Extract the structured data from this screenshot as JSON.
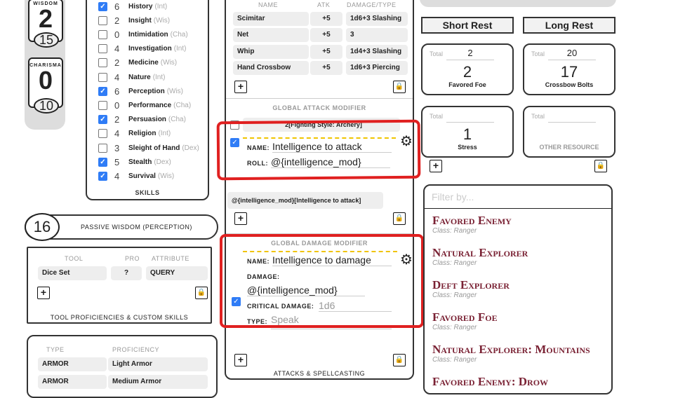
{
  "abilities": [
    {
      "label": "WISDOM",
      "mod": "2",
      "score": "15"
    },
    {
      "label": "CHARISMA",
      "mod": "0",
      "score": "10"
    }
  ],
  "skills": {
    "title": "SKILLS",
    "items": [
      {
        "checked": true,
        "value": "6",
        "name": "History",
        "attr": "(Int)"
      },
      {
        "checked": false,
        "value": "2",
        "name": "Insight",
        "attr": "(Wis)"
      },
      {
        "checked": false,
        "value": "0",
        "name": "Intimidation",
        "attr": "(Cha)"
      },
      {
        "checked": false,
        "value": "4",
        "name": "Investigation",
        "attr": "(Int)"
      },
      {
        "checked": false,
        "value": "2",
        "name": "Medicine",
        "attr": "(Wis)"
      },
      {
        "checked": false,
        "value": "4",
        "name": "Nature",
        "attr": "(Int)"
      },
      {
        "checked": true,
        "value": "6",
        "name": "Perception",
        "attr": "(Wis)"
      },
      {
        "checked": false,
        "value": "0",
        "name": "Performance",
        "attr": "(Cha)"
      },
      {
        "checked": true,
        "value": "2",
        "name": "Persuasion",
        "attr": "(Cha)"
      },
      {
        "checked": false,
        "value": "4",
        "name": "Religion",
        "attr": "(Int)"
      },
      {
        "checked": false,
        "value": "3",
        "name": "Sleight of Hand",
        "attr": "(Dex)"
      },
      {
        "checked": true,
        "value": "5",
        "name": "Stealth",
        "attr": "(Dex)"
      },
      {
        "checked": true,
        "value": "4",
        "name": "Survival",
        "attr": "(Wis)"
      }
    ]
  },
  "passive": {
    "value": "16",
    "label": "PASSIVE WISDOM (PERCEPTION)"
  },
  "tools": {
    "headers": [
      "TOOL",
      "PRO",
      "ATTRIBUTE"
    ],
    "rows": [
      [
        "Dice Set",
        "?",
        "QUERY"
      ]
    ],
    "title": "TOOL PROFICIENCIES & CUSTOM SKILLS"
  },
  "proficiencies": {
    "headers": [
      "TYPE",
      "PROFICIENCY"
    ],
    "rows": [
      [
        "ARMOR",
        "Light Armor"
      ],
      [
        "ARMOR",
        "Medium Armor"
      ]
    ]
  },
  "attacks": {
    "headers": [
      "NAME",
      "ATK",
      "DAMAGE/TYPE"
    ],
    "rows": [
      [
        "Scimitar",
        "+5",
        "1d6+3 Slashing"
      ],
      [
        "Net",
        "+5",
        "3"
      ],
      [
        "Whip",
        "+5",
        "1d4+3 Slashing"
      ],
      [
        "Hand Crossbow",
        "+5",
        "1d6+3 Piercing"
      ]
    ],
    "global_attack": {
      "title": "GLOBAL ATTACK MODIFIER",
      "existing": "2[Fighting Style: Archery]",
      "name_label": "NAME:",
      "name": "Intelligence to attack",
      "roll_label": "ROLL:",
      "roll": "@{intelligence_mod}",
      "summary": "@{intelligence_mod}[Intelligence to attack]"
    },
    "global_damage": {
      "title": "GLOBAL DAMAGE MODIFIER",
      "name_label": "NAME:",
      "name": "Intelligence to damage",
      "damage_label": "DAMAGE:",
      "damage": "@{intelligence_mod}",
      "crit_label": "CRITICAL DAMAGE:",
      "crit_placeholder": "1d6",
      "type_label": "TYPE:",
      "type_placeholder": "Speak"
    },
    "title": "ATTACKS & SPELLCASTING"
  },
  "rest": {
    "short": "Short Rest",
    "long": "Long Rest"
  },
  "resources": [
    {
      "total_label": "Total",
      "max": "2",
      "current": "2",
      "name": "Favored Foe"
    },
    {
      "total_label": "Total",
      "max": "20",
      "current": "17",
      "name": "Crossbow Bolts"
    },
    {
      "total_label": "Total",
      "max": "",
      "current": "1",
      "name": "Stress"
    },
    {
      "total_label": "Total",
      "max": "",
      "current": "",
      "name": "OTHER RESOURCE"
    }
  ],
  "features": {
    "filter_placeholder": "Filter by...",
    "items": [
      {
        "name": "Favored Enemy",
        "source": "Class: Ranger"
      },
      {
        "name": "Natural Explorer",
        "source": "Class: Ranger"
      },
      {
        "name": "Deft Explorer",
        "source": "Class: Ranger"
      },
      {
        "name": "Favored Foe",
        "source": "Class: Ranger"
      },
      {
        "name": "Natural Explorer: Mountains",
        "source": "Class: Ranger"
      },
      {
        "name": "Favored Enemy: Drow",
        "source": ""
      }
    ]
  },
  "colors": {
    "accent": "#7a2234",
    "checkbox": "#2f7cf6",
    "annotation": "#e02020",
    "dashed": "#f0c400"
  }
}
